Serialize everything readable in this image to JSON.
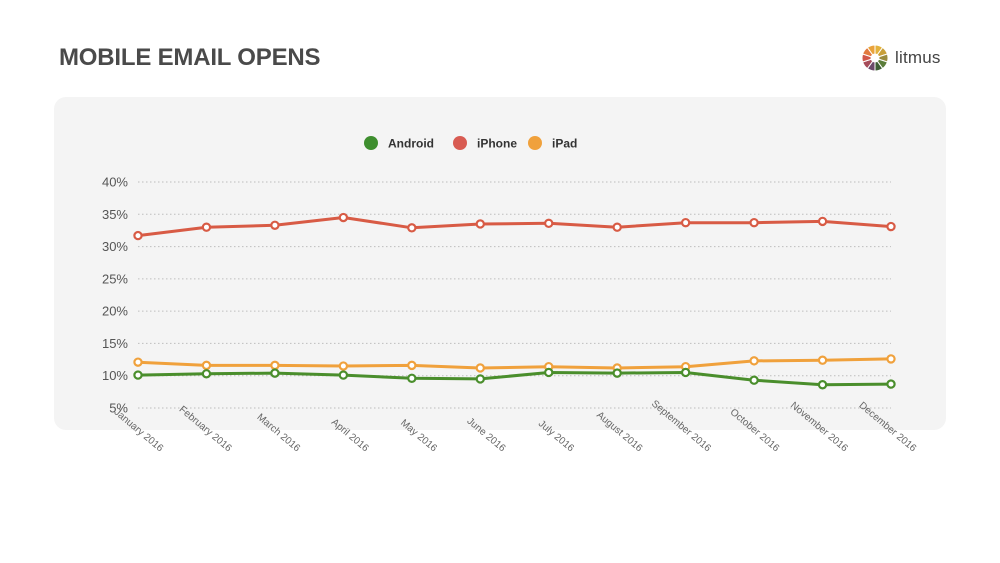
{
  "header": {
    "title": "MOBILE EMAIL OPENS",
    "brand_name": "litmus"
  },
  "chart_data": {
    "type": "line",
    "categories": [
      "January 2016",
      "February 2016",
      "March 2016",
      "April 2016",
      "May 2016",
      "June 2016",
      "July 2016",
      "August 2016",
      "September 2016",
      "October 2016",
      "November 2016",
      "December 2016"
    ],
    "series": [
      {
        "name": "iPhone",
        "color": "#d85b45",
        "values": [
          31.7,
          33.0,
          33.3,
          34.5,
          32.9,
          33.5,
          33.6,
          33.0,
          33.7,
          33.7,
          33.9,
          33.1
        ]
      },
      {
        "name": "iPad",
        "color": "#f0a13c",
        "values": [
          12.1,
          11.6,
          11.6,
          11.5,
          11.6,
          11.2,
          11.4,
          11.2,
          11.4,
          12.3,
          12.4,
          12.6
        ]
      },
      {
        "name": "Android",
        "color": "#4a8e2c",
        "values": [
          10.1,
          10.3,
          10.4,
          10.1,
          9.6,
          9.5,
          10.5,
          10.4,
          10.5,
          9.3,
          8.6,
          8.7
        ]
      }
    ],
    "legend": [
      {
        "name": "Android",
        "color": "#3e8e2e"
      },
      {
        "name": "iPhone",
        "color": "#d85b52"
      },
      {
        "name": "iPad",
        "color": "#f0a13c"
      }
    ],
    "legend_position": "top-center",
    "yticks": [
      "5%",
      "10%",
      "15%",
      "20%",
      "25%",
      "30%",
      "35%",
      "40%"
    ],
    "ytick_values": [
      5,
      10,
      15,
      20,
      25,
      30,
      35,
      40
    ],
    "ylim": [
      5,
      40
    ],
    "grid": true,
    "xlabel": "",
    "ylabel": ""
  }
}
